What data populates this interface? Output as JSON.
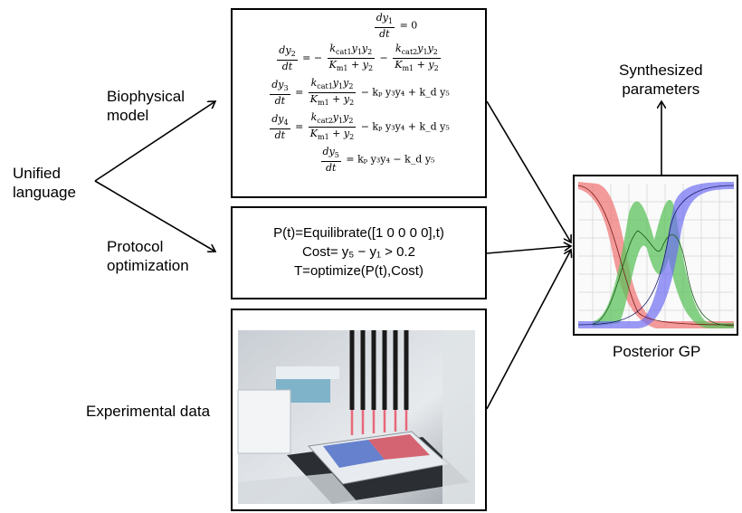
{
  "labels": {
    "unified_language": "Unified\nlanguage",
    "biophysical_model": "Biophysical\nmodel",
    "protocol_optimization": "Protocol\noptimization",
    "experimental_data": "Experimental data",
    "synthesized_parameters": "Synthesized\nparameters",
    "posterior_gp": "Posterior GP"
  },
  "equations": {
    "eq1_rhs": "= 0",
    "eq2_a": "= −",
    "eq2_b": "−",
    "eq3_rhs": "− kₚ y₃y₄ + k_d y₅",
    "eq4_rhs": "− kₚ y₃y₄ + k_d y₅",
    "eq5_rhs": "= kₚ y₃y₄ − k_d y₅"
  },
  "protocol": {
    "line1": "P(t)=Equilibrate([1 0 0 0 0],t)",
    "line2": "Cost= y₅ − y₁ > 0.2",
    "line3": "T=optimize(P(t),Cost)"
  },
  "colors": {
    "red_band": "#f07070",
    "green_band": "#5cc25c",
    "blue_band": "#6f6ff2",
    "grid": "#dddddd"
  }
}
